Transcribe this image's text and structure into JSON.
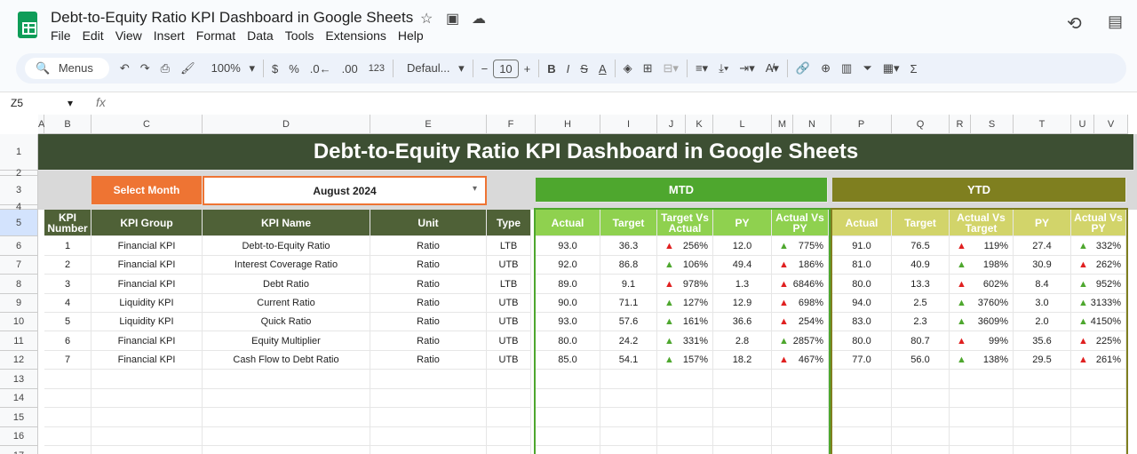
{
  "app": {
    "title": "Debt-to-Equity Ratio KPI Dashboard in Google Sheets",
    "menu": [
      "File",
      "Edit",
      "View",
      "Insert",
      "Format",
      "Data",
      "Tools",
      "Extensions",
      "Help"
    ],
    "toolbar": {
      "menus": "Menus",
      "zoom": "100%",
      "currency": "$",
      "percent": "%",
      "dec_dec": ".0←",
      "inc_dec": ".00",
      "num": "123",
      "font": "Defaul...",
      "font_size": "10"
    },
    "name_box": "Z5",
    "fx": "fx"
  },
  "columns": [
    "A",
    "B",
    "C",
    "D",
    "E",
    "F",
    "H",
    "I",
    "J",
    "K",
    "L",
    "M",
    "N",
    "P",
    "Q",
    "R",
    "S",
    "T",
    "U",
    "V"
  ],
  "rows": [
    "1",
    "2",
    "3",
    "4",
    "5",
    "6",
    "7",
    "8",
    "9",
    "10",
    "11",
    "12",
    "13",
    "14",
    "15",
    "16",
    "17"
  ],
  "dashboard": {
    "title": "Debt-to-Equity Ratio KPI Dashboard in Google Sheets",
    "select_label": "Select Month",
    "month": "August 2024",
    "mtd": "MTD",
    "ytd": "YTD",
    "headers": [
      "KPI Number",
      "KPI Group",
      "KPI Name",
      "Unit",
      "Type"
    ],
    "mtd_headers": [
      "Actual",
      "Target",
      "Target Vs Actual",
      "PY",
      "Actual Vs PY"
    ],
    "ytd_headers": [
      "Actual",
      "Target",
      "Actual Vs Target",
      "PY",
      "Actual Vs PY"
    ],
    "colors": {
      "title_bg": "#3d4f33",
      "header_bg": "#4f6137",
      "select_bg": "#ee7433",
      "mtd_bg": "#4ea72e",
      "mtd_head": "#8fd14f",
      "ytd_bg": "#7f7f1f",
      "ytd_head": "#d2d46a",
      "up": "#4ea72e",
      "down": "#e02020"
    },
    "kpis": [
      {
        "num": "1",
        "group": "Financial KPI",
        "name": "Debt-to-Equity Ratio",
        "unit": "Ratio",
        "type": "LTB",
        "mtd": [
          "93.0",
          "36.3",
          [
            "down",
            "256%"
          ],
          "12.0",
          [
            "up",
            "775%"
          ]
        ],
        "ytd": [
          "91.0",
          "76.5",
          [
            "down",
            "119%"
          ],
          "27.4",
          [
            "up",
            "332%"
          ]
        ]
      },
      {
        "num": "2",
        "group": "Financial KPI",
        "name": "Interest Coverage Ratio",
        "unit": "Ratio",
        "type": "UTB",
        "mtd": [
          "92.0",
          "86.8",
          [
            "up",
            "106%"
          ],
          "49.4",
          [
            "down",
            "186%"
          ]
        ],
        "ytd": [
          "81.0",
          "40.9",
          [
            "up",
            "198%"
          ],
          "30.9",
          [
            "down",
            "262%"
          ]
        ]
      },
      {
        "num": "3",
        "group": "Financial KPI",
        "name": "Debt Ratio",
        "unit": "Ratio",
        "type": "LTB",
        "mtd": [
          "89.0",
          "9.1",
          [
            "down",
            "978%"
          ],
          "1.3",
          [
            "down",
            "6846%"
          ]
        ],
        "ytd": [
          "80.0",
          "13.3",
          [
            "down",
            "602%"
          ],
          "8.4",
          [
            "up",
            "952%"
          ]
        ]
      },
      {
        "num": "4",
        "group": "Liquidity KPI",
        "name": "Current Ratio",
        "unit": "Ratio",
        "type": "UTB",
        "mtd": [
          "90.0",
          "71.1",
          [
            "up",
            "127%"
          ],
          "12.9",
          [
            "down",
            "698%"
          ]
        ],
        "ytd": [
          "94.0",
          "2.5",
          [
            "up",
            "3760%"
          ],
          "3.0",
          [
            "up",
            "3133%"
          ]
        ]
      },
      {
        "num": "5",
        "group": "Liquidity KPI",
        "name": "Quick Ratio",
        "unit": "Ratio",
        "type": "UTB",
        "mtd": [
          "93.0",
          "57.6",
          [
            "up",
            "161%"
          ],
          "36.6",
          [
            "down",
            "254%"
          ]
        ],
        "ytd": [
          "83.0",
          "2.3",
          [
            "up",
            "3609%"
          ],
          "2.0",
          [
            "up",
            "4150%"
          ]
        ]
      },
      {
        "num": "6",
        "group": "Financial KPI",
        "name": "Equity Multiplier",
        "unit": "Ratio",
        "type": "UTB",
        "mtd": [
          "80.0",
          "24.2",
          [
            "up",
            "331%"
          ],
          "2.8",
          [
            "up",
            "2857%"
          ]
        ],
        "ytd": [
          "80.0",
          "80.7",
          [
            "down",
            "99%"
          ],
          "35.6",
          [
            "down",
            "225%"
          ]
        ]
      },
      {
        "num": "7",
        "group": "Financial KPI",
        "name": "Cash Flow to Debt Ratio",
        "unit": "Ratio",
        "type": "UTB",
        "mtd": [
          "85.0",
          "54.1",
          [
            "up",
            "157%"
          ],
          "18.2",
          [
            "down",
            "467%"
          ]
        ],
        "ytd": [
          "77.0",
          "56.0",
          [
            "up",
            "138%"
          ],
          "29.5",
          [
            "down",
            "261%"
          ]
        ]
      }
    ]
  }
}
